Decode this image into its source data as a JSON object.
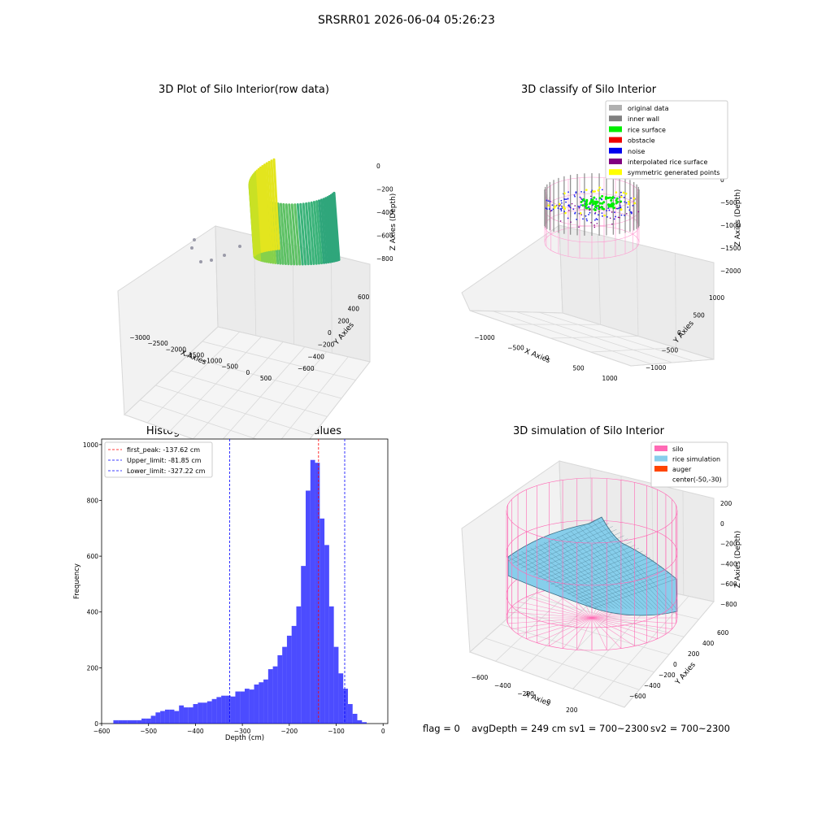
{
  "figure_title": "SRSRR01 2026-06-04 05:26:23",
  "panels": {
    "raw": {
      "title": "3D Plot of Silo Interior(row data)",
      "xlabel": "X Axies",
      "ylabel": "Y Axies",
      "zlabel": "Z Axies (Depth)",
      "x_ticks": [
        "−3000",
        "−2500",
        "−2000",
        "−1500",
        "−1000",
        "−500",
        "0",
        "500"
      ],
      "y_ticks": [
        "−600",
        "−400",
        "−200",
        "0",
        "200",
        "400",
        "600"
      ],
      "z_ticks": [
        "0",
        "−200",
        "−400",
        "−600",
        "−800"
      ]
    },
    "classify": {
      "title": "3D classify of Silo Interior",
      "xlabel": "X Axies",
      "ylabel": "Y Axies",
      "zlabel": "Z Axies (Depth)",
      "x_ticks": [
        "−1000",
        "−500",
        "0",
        "500",
        "1000"
      ],
      "y_ticks": [
        "−1000",
        "−500",
        "0",
        "500",
        "1000"
      ],
      "z_ticks": [
        "0",
        "−500",
        "−1000",
        "−1500",
        "−2000"
      ],
      "legend": [
        {
          "label": "original data",
          "color": "#b0b0b0"
        },
        {
          "label": "inner wall",
          "color": "#808080"
        },
        {
          "label": "rice surface",
          "color": "#00ee00"
        },
        {
          "label": "obstacle",
          "color": "#ee0000"
        },
        {
          "label": "noise",
          "color": "#0000ee"
        },
        {
          "label": "interpolated rice surface",
          "color": "#800080"
        },
        {
          "label": "symmetric generated points",
          "color": "#ffff00"
        }
      ]
    },
    "simulation": {
      "title": "3D simulation of Silo Interior",
      "xlabel": "X Axies",
      "ylabel": "Y Axies",
      "zlabel": "Z Axies (Depth)",
      "x_ticks": [
        "−600",
        "−400",
        "−200",
        "0",
        "200",
        "400",
        "600"
      ],
      "y_ticks": [
        "−600",
        "−400",
        "−200",
        "0",
        "200",
        "400",
        "600"
      ],
      "z_ticks": [
        "200",
        "0",
        "−200",
        "−400",
        "−600",
        "−800"
      ],
      "legend": [
        {
          "label": "silo",
          "color": "#ff69b4"
        },
        {
          "label": "rice simulation",
          "color": "#87ceeb"
        },
        {
          "label": "auger",
          "color": "#ff4500"
        },
        {
          "label": "center(-50,-30)",
          "color": ""
        }
      ]
    }
  },
  "status": {
    "flag": "flag = 0",
    "avg_depth": "avgDepth = 249 cm",
    "sv1": "sv1 = 700~2300",
    "sv2": "sv2 = 700~2300"
  },
  "chart_data": {
    "type": "bar",
    "title": "Histogram of Z-Axies (Height) Values",
    "xlabel": "Depth (cm)",
    "ylabel": "Frequency",
    "xlim": [
      -600,
      10
    ],
    "ylim": [
      0,
      1020
    ],
    "x_ticks": [
      -600,
      -500,
      -400,
      -300,
      -200,
      -100,
      0
    ],
    "y_ticks": [
      0,
      200,
      400,
      600,
      800,
      1000
    ],
    "bin_start": -575,
    "bin_width": 10,
    "values": [
      12,
      12,
      12,
      12,
      12,
      12,
      18,
      18,
      28,
      40,
      45,
      50,
      50,
      45,
      65,
      58,
      58,
      70,
      75,
      75,
      80,
      88,
      95,
      100,
      100,
      97,
      115,
      115,
      125,
      122,
      140,
      148,
      158,
      195,
      205,
      245,
      275,
      315,
      350,
      420,
      565,
      835,
      945,
      935,
      735,
      640,
      420,
      275,
      180,
      125,
      70,
      35,
      12,
      5
    ],
    "color": "#0000ff",
    "vlines": [
      {
        "label": "first_peak: -137.62 cm",
        "x": -137.62,
        "color": "#ff0000"
      },
      {
        "label": "Upper_limit: -81.85 cm",
        "x": -81.85,
        "color": "#0000ff"
      },
      {
        "label": "Lower_limit: -327.22 cm",
        "x": -327.22,
        "color": "#0000ff"
      }
    ]
  }
}
